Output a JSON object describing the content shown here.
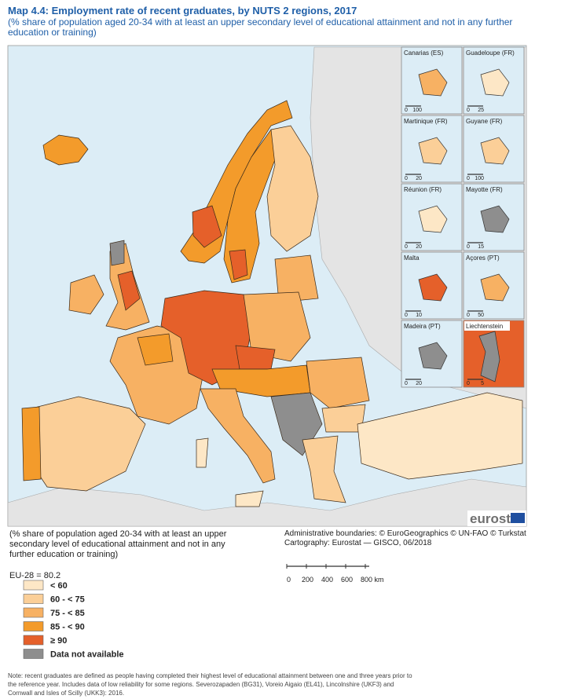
{
  "header": {
    "title_prefix": "Map 4.4:",
    "title": "Employment rate of recent graduates, by NUTS 2 regions, 2017",
    "subtitle": "(% share of population aged 20-34 with at least an upper secondary level of educational attainment and not in any further education or training)"
  },
  "insets": [
    {
      "label": "Canarias (ES)",
      "scale": [
        "0",
        "100"
      ]
    },
    {
      "label": "Guadeloupe (FR)",
      "scale": [
        "0",
        "25"
      ]
    },
    {
      "label": "Martinique (FR)",
      "scale": [
        "0",
        "20"
      ]
    },
    {
      "label": "Guyane (FR)",
      "scale": [
        "0",
        "100"
      ]
    },
    {
      "label": "Réunion (FR)",
      "scale": [
        "0",
        "20"
      ]
    },
    {
      "label": "Mayotte (FR)",
      "scale": [
        "0",
        "15"
      ]
    },
    {
      "label": "Malta",
      "scale": [
        "0",
        "10"
      ]
    },
    {
      "label": "Açores (PT)",
      "scale": [
        "0",
        "50"
      ]
    },
    {
      "label": "Madeira (PT)",
      "scale": [
        "0",
        "20"
      ]
    },
    {
      "label": "Liechtenstein",
      "scale": [
        "0",
        "5"
      ]
    }
  ],
  "logo": "eurostat",
  "legend": {
    "description": "(% share of population aged 20-34 with at least an upper secondary level of educational attainment and not in any further education or training)",
    "eu_average": "EU-28 = 80.2",
    "classes": [
      {
        "label": "< 60",
        "color": "#fde7c6"
      },
      {
        "label": "60 - < 75",
        "color": "#fbcf98"
      },
      {
        "label": "75 - < 85",
        "color": "#f7b163"
      },
      {
        "label": "85 - < 90",
        "color": "#f39b2b"
      },
      {
        "label": "≥ 90",
        "color": "#e5602a"
      },
      {
        "label": "Data not available",
        "color": "#8e8e8e"
      }
    ]
  },
  "credits": {
    "boundaries": "Administrative boundaries: © EuroGeographics © UN-FAO © Turkstat",
    "cartography": "Cartography: Eurostat — GISCO, 06/2018"
  },
  "scale_bar": {
    "ticks": [
      "0",
      "200",
      "400",
      "600",
      "800 km"
    ]
  },
  "note": "Note: recent graduates are defined as people having completed their highest level of educational attainment between one and three years prior to the reference year. Includes data of low reliability for some regions. Severozapaden (BG31), Voreio Aigaio (EL41), Lincolnshire (UKF3) and Cornwall and Isles of Scilly (UKK3): 2016."
}
